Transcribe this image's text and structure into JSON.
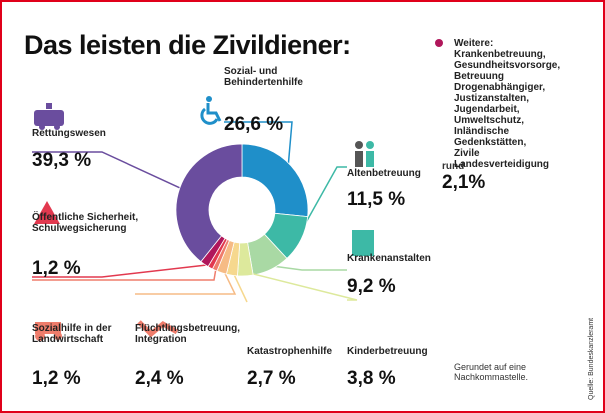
{
  "chart_data": {
    "type": "pie",
    "title": "Das leisten die Zivildiener:",
    "categories": [
      "Sozial- und\nBehindertenhilfe",
      "Altenbetreuung",
      "Krankenanstalten",
      "Kinderbetreuung",
      "Katastrophenhilfe",
      "Flüchtlingsbetreuung,\nIntegration",
      "Sozialhilfe in der\nLandwirtschaft",
      "Öffentliche Sicherheit,\nSchulwegsicherung",
      "Weitere:\nKrankenbetreuung,\nGesundheitsvorsorge,\nBetreuung\nDrogenabhängiger,\nJustizanstalten,\nJugendarbeit,\nUmweltschutz,\nInländische\nGedenkstätten,\nZivile\nLandesverteidigung",
      "Rettungswesen"
    ],
    "values": [
      26.6,
      11.5,
      9.2,
      3.8,
      2.7,
      2.4,
      1.2,
      1.2,
      2.1,
      39.3
    ],
    "value_labels": [
      "26,6 %",
      "11,5 %",
      "9,2 %",
      "3,8 %",
      "2,7 %",
      "2,4 %",
      "1,2 %",
      "1,2 %",
      "2,1%",
      "39,3 %"
    ],
    "colors": [
      "#1f8fc9",
      "#3db9a6",
      "#a9d9a4",
      "#dde99c",
      "#f6d88e",
      "#f6bb85",
      "#ef7d6c",
      "#e2394f",
      "#b0175b",
      "#6a4d9e"
    ],
    "weitere_prefix": "rund",
    "footnote": "Gerundet auf eine\nNachkommastelle.",
    "source": "Quelle: Bundeskanzleramt"
  }
}
